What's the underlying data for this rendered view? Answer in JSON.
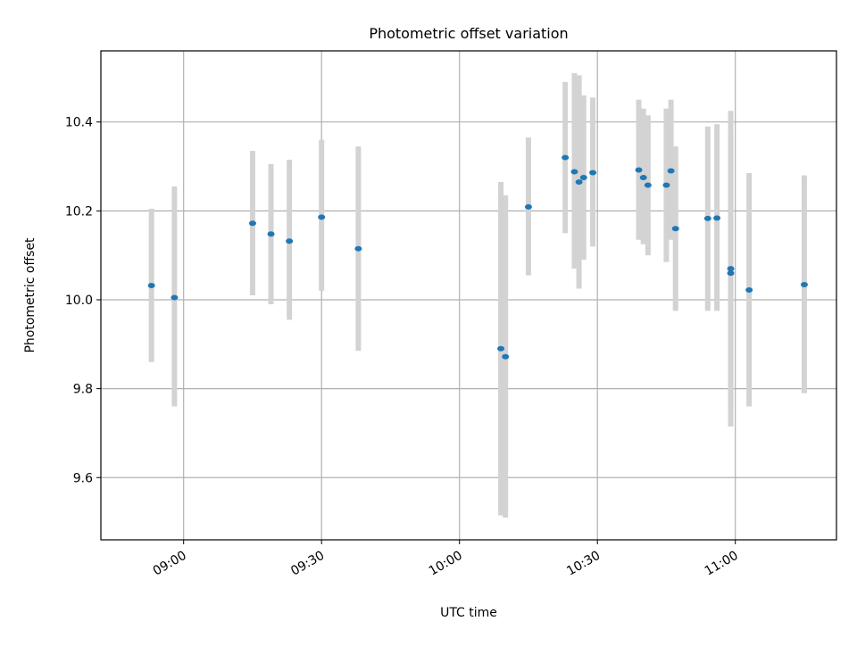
{
  "chart_data": {
    "type": "scatter",
    "title": "Photometric offset variation",
    "xlabel": "UTC time",
    "ylabel": "Photometric offset",
    "x_unit": "minutes after 08:00 UTC",
    "xlim": [
      "08:42",
      "11:22"
    ],
    "ylim": [
      9.46,
      10.56
    ],
    "x_ticks": [
      "09:00",
      "09:30",
      "10:00",
      "10:30",
      "11:00"
    ],
    "y_ticks": [
      "9.6",
      "9.8",
      "10.0",
      "10.2",
      "10.4"
    ],
    "grid": true,
    "colors": {
      "point": "#1f77b4",
      "errorbar": "#d3d3d3",
      "grid": "#b0b0b0"
    },
    "points": [
      {
        "x": "08:53",
        "y": 10.032,
        "err_low": 9.86,
        "err_high": 10.205
      },
      {
        "x": "08:58",
        "y": 10.005,
        "err_low": 9.76,
        "err_high": 10.255
      },
      {
        "x": "09:15",
        "y": 10.172,
        "err_low": 10.01,
        "err_high": 10.335
      },
      {
        "x": "09:19",
        "y": 10.148,
        "err_low": 9.99,
        "err_high": 10.305
      },
      {
        "x": "09:23",
        "y": 10.132,
        "err_low": 9.955,
        "err_high": 10.315
      },
      {
        "x": "09:30",
        "y": 10.186,
        "err_low": 10.02,
        "err_high": 10.36
      },
      {
        "x": "09:38",
        "y": 10.115,
        "err_low": 9.885,
        "err_high": 10.345
      },
      {
        "x": "10:09",
        "y": 9.89,
        "err_low": 9.515,
        "err_high": 10.265
      },
      {
        "x": "10:10",
        "y": 9.872,
        "err_low": 9.51,
        "err_high": 10.235
      },
      {
        "x": "10:15",
        "y": 10.209,
        "err_low": 10.055,
        "err_high": 10.365
      },
      {
        "x": "10:23",
        "y": 10.32,
        "err_low": 10.15,
        "err_high": 10.49
      },
      {
        "x": "10:25",
        "y": 10.288,
        "err_low": 10.07,
        "err_high": 10.51
      },
      {
        "x": "10:26",
        "y": 10.265,
        "err_low": 10.025,
        "err_high": 10.505
      },
      {
        "x": "10:27",
        "y": 10.275,
        "err_low": 10.09,
        "err_high": 10.46
      },
      {
        "x": "10:29",
        "y": 10.286,
        "err_low": 10.12,
        "err_high": 10.455
      },
      {
        "x": "10:39",
        "y": 10.292,
        "err_low": 10.135,
        "err_high": 10.45
      },
      {
        "x": "10:40",
        "y": 10.275,
        "err_low": 10.125,
        "err_high": 10.43
      },
      {
        "x": "10:41",
        "y": 10.258,
        "err_low": 10.1,
        "err_high": 10.415
      },
      {
        "x": "10:45",
        "y": 10.258,
        "err_low": 10.085,
        "err_high": 10.43
      },
      {
        "x": "10:46",
        "y": 10.29,
        "err_low": 10.135,
        "err_high": 10.45
      },
      {
        "x": "10:47",
        "y": 10.16,
        "err_low": 9.975,
        "err_high": 10.345
      },
      {
        "x": "10:54",
        "y": 10.183,
        "err_low": 9.975,
        "err_high": 10.39
      },
      {
        "x": "10:56",
        "y": 10.184,
        "err_low": 9.975,
        "err_high": 10.395
      },
      {
        "x": "10:59",
        "y": 10.07,
        "err_low": 9.715,
        "err_high": 10.425
      },
      {
        "x": "10:59",
        "y": 10.06,
        "err_low": 9.75,
        "err_high": 10.37
      },
      {
        "x": "11:03",
        "y": 10.022,
        "err_low": 9.76,
        "err_high": 10.285
      },
      {
        "x": "11:15",
        "y": 10.034,
        "err_low": 9.79,
        "err_high": 10.28
      }
    ]
  }
}
